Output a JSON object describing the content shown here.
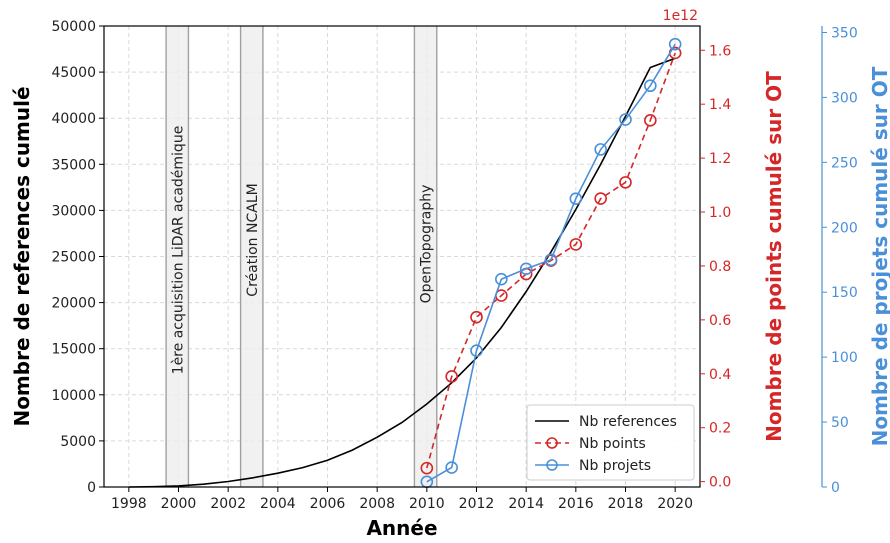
{
  "chart_data": {
    "type": "line",
    "xlabel": "Année",
    "x_ticks": [
      "1998",
      "2000",
      "2002",
      "2004",
      "2006",
      "2008",
      "2010",
      "2012",
      "2014",
      "2016",
      "2018",
      "2020"
    ],
    "xlim": [
      1997,
      2021
    ],
    "grid": true,
    "legend_position": "bottom-right",
    "axes": {
      "left": {
        "label": "Nombre de references cumulé",
        "ylim": [
          0,
          50000
        ],
        "ticks": [
          "0",
          "5000",
          "10000",
          "15000",
          "20000",
          "25000",
          "30000",
          "35000",
          "40000",
          "45000",
          "50000"
        ],
        "color": "#000000"
      },
      "right1": {
        "label": "Nombre de points cumulé sur OT",
        "offset_label": "1e12",
        "ylim": [
          -0.02,
          1.69
        ],
        "ticks": [
          "0.0",
          "0.2",
          "0.4",
          "0.6",
          "0.8",
          "1.0",
          "1.2",
          "1.4",
          "1.6"
        ],
        "color": "#d62728"
      },
      "right2": {
        "label": "Nombre de projets cumulé sur OT",
        "ylim": [
          0,
          355
        ],
        "ticks": [
          "0",
          "50",
          "100",
          "150",
          "200",
          "250",
          "300",
          "350"
        ],
        "color": "#4a90d9"
      }
    },
    "series": [
      {
        "name": "Nb references",
        "axis": "left",
        "style": "solid",
        "color": "#000000",
        "x": [
          1998,
          1999,
          2000,
          2001,
          2002,
          2003,
          2004,
          2005,
          2006,
          2007,
          2008,
          2009,
          2010,
          2011,
          2012,
          2013,
          2014,
          2015,
          2016,
          2017,
          2018,
          2019,
          2020
        ],
        "y": [
          0,
          30,
          120,
          300,
          600,
          1000,
          1500,
          2100,
          2900,
          4000,
          5400,
          7000,
          9000,
          11300,
          14000,
          17300,
          21200,
          25500,
          30100,
          35000,
          40200,
          45500,
          46500
        ]
      },
      {
        "name": "Nb points",
        "axis": "right1",
        "style": "dashed",
        "marker": "circle-open",
        "color": "#d62728",
        "x": [
          2010,
          2011,
          2012,
          2013,
          2014,
          2015,
          2016,
          2017,
          2018,
          2019,
          2020
        ],
        "y": [
          0.05,
          0.39,
          0.61,
          0.69,
          0.77,
          0.82,
          0.88,
          1.05,
          1.11,
          1.34,
          1.59
        ]
      },
      {
        "name": "Nb projets",
        "axis": "right2",
        "style": "solid",
        "marker": "circle-open",
        "color": "#4a90d9",
        "x": [
          2010,
          2011,
          2012,
          2013,
          2014,
          2015,
          2016,
          2017,
          2018,
          2019,
          2020
        ],
        "y": [
          4,
          15,
          105,
          160,
          168,
          175,
          222,
          260,
          283,
          309,
          341
        ]
      }
    ],
    "annotations": [
      {
        "text": "1ère acquisition LiDAR académique",
        "span": [
          1999.5,
          2000.4
        ]
      },
      {
        "text": "Création NCALM",
        "span": [
          2002.5,
          2003.4
        ]
      },
      {
        "text": "OpenTopography",
        "span": [
          2009.5,
          2010.4
        ]
      }
    ]
  }
}
